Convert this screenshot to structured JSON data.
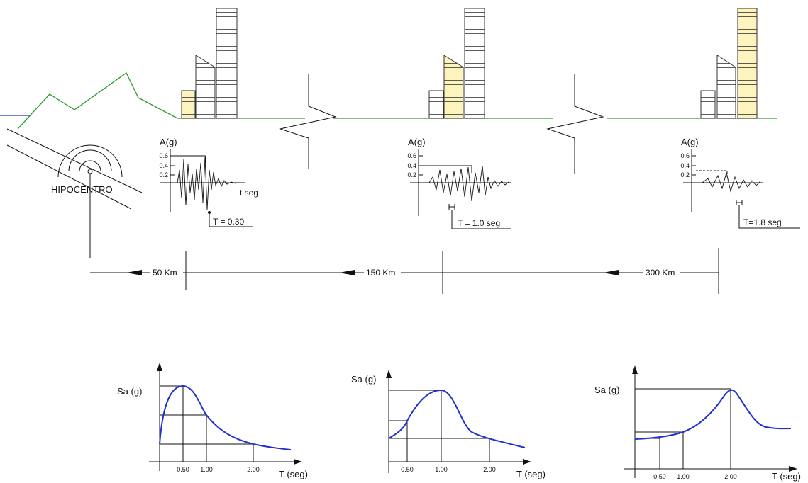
{
  "hypocenter": {
    "label": "HIPOCENTRO"
  },
  "accelerograms": [
    {
      "y_label": "A(g)",
      "y_ticks": [
        "0.6",
        "0.4",
        "0.2"
      ],
      "x_label": "t seg",
      "period_label": "T = 0.30"
    },
    {
      "y_label": "A(g)",
      "y_ticks": [
        "0.6",
        "0.4",
        "0.2"
      ],
      "period_label": "T = 1.0 seg"
    },
    {
      "y_label": "A(g)",
      "y_ticks": [
        "0.6",
        "0.4",
        "0.2"
      ],
      "period_label": "T=1.8 seg"
    }
  ],
  "distances": [
    "50 Km",
    "150 Km",
    "300 Km"
  ],
  "spectra": [
    {
      "y_label": "Sa (g)",
      "x_label": "T (seg)",
      "x_ticks": [
        "0.50",
        "1.00",
        "2.00"
      ]
    },
    {
      "y_label": "Sa (g)",
      "x_label": "T (seg)",
      "x_ticks": [
        "0.50",
        "1.00",
        "2.00"
      ]
    },
    {
      "y_label": "Sa (g)",
      "x_label": "T (seg)",
      "x_ticks": [
        "0.50",
        "1.00",
        "2.00"
      ]
    }
  ]
}
